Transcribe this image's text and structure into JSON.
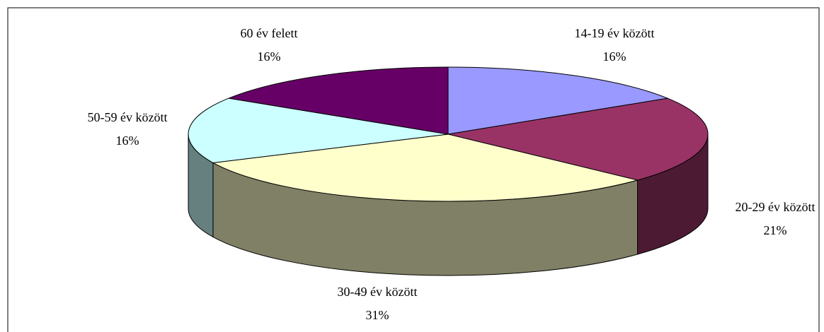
{
  "chart_data": {
    "type": "pie3d",
    "categories": [
      "14-19 év között",
      "20-29 év között",
      "30-49 év között",
      "50-59 év között",
      "60 év felett"
    ],
    "values": [
      16,
      21,
      31,
      16,
      16
    ],
    "value_labels": [
      "16%",
      "21%",
      "31%",
      "16%",
      "16%"
    ],
    "colors": [
      "#9999ff",
      "#993366",
      "#ffffcc",
      "#ccffff",
      "#660066"
    ]
  }
}
